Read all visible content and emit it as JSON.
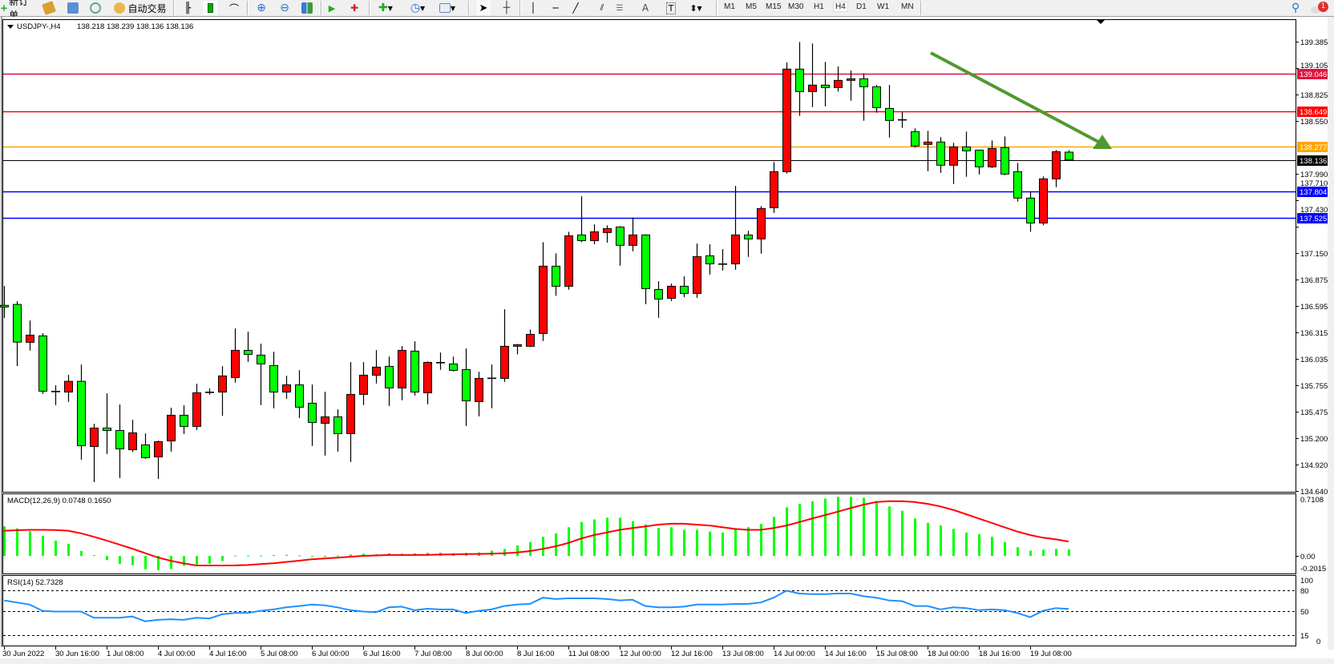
{
  "toolbar": {
    "new_order_label": "新订单",
    "auto_trading_label": "自动交易",
    "timeframes": [
      "M1",
      "M5",
      "M15",
      "M30",
      "H1",
      "H4",
      "D1",
      "W1",
      "MN"
    ],
    "active_timeframe": "H4",
    "notification_count": "1"
  },
  "chart": {
    "symbol_header": "USDJPY-,H4",
    "ohlc_header": "138.218 138.239 138.136 138.136",
    "bull_color": "#ff0000",
    "bear_color": "#00ff00",
    "price_ticks": [
      "139.385",
      "139.105",
      "138.825",
      "138.550",
      "137.990",
      "137.710",
      "137.430",
      "137.150",
      "136.875",
      "136.595",
      "136.315",
      "136.035",
      "135.755",
      "135.475",
      "135.200",
      "134.920",
      "134.640"
    ],
    "levels": [
      {
        "price": "139.046",
        "color": "#dc143c"
      },
      {
        "price": "138.649",
        "color": "#ff0000"
      },
      {
        "price": "138.277",
        "color": "#ffa500"
      },
      {
        "price": "138.136",
        "color": "#000000"
      },
      {
        "price": "137.804",
        "color": "#0000ff"
      },
      {
        "price": "137.525",
        "color": "#0000ff"
      }
    ],
    "trend_arrow_color": "#4f9a2f",
    "time_labels": [
      "30 Jun 2022",
      "30 Jun 16:00",
      "1 Jul 08:00",
      "4 Jul 00:00",
      "4 Jul 16:00",
      "5 Jul 08:00",
      "6 Jul 00:00",
      "6 Jul 16:00",
      "7 Jul 08:00",
      "8 Jul 00:00",
      "8 Jul 16:00",
      "11 Jul 08:00",
      "12 Jul 00:00",
      "12 Jul 16:00",
      "13 Jul 08:00",
      "14 Jul 00:00",
      "14 Jul 16:00",
      "15 Jul 08:00",
      "18 Jul 00:00",
      "18 Jul 16:00",
      "19 Jul 08:00"
    ]
  },
  "chart_data": {
    "type": "candlestick",
    "ylim": [
      134.64,
      139.385
    ],
    "ohlc": [
      [
        136.6,
        136.805,
        136.466,
        136.593
      ],
      [
        136.61,
        136.644,
        135.959,
        136.212
      ],
      [
        136.21,
        136.441,
        136.122,
        136.286
      ],
      [
        136.278,
        136.306,
        135.665,
        135.694
      ],
      [
        135.69,
        135.756,
        135.547,
        135.69
      ],
      [
        135.685,
        135.866,
        135.581,
        135.798
      ],
      [
        135.798,
        135.976,
        134.971,
        135.119
      ],
      [
        135.11,
        135.35,
        134.734,
        135.305
      ],
      [
        135.305,
        135.671,
        135.031,
        135.279
      ],
      [
        135.279,
        135.553,
        134.777,
        135.085
      ],
      [
        135.076,
        135.392,
        135.051,
        135.254
      ],
      [
        135.127,
        135.248,
        134.98,
        134.992
      ],
      [
        135.0,
        135.172,
        134.768,
        135.161
      ],
      [
        135.169,
        135.519,
        135.056,
        135.44
      ],
      [
        135.44,
        135.544,
        135.242,
        135.322
      ],
      [
        135.322,
        135.773,
        135.284,
        135.677
      ],
      [
        135.682,
        135.722,
        135.657,
        135.682
      ],
      [
        135.685,
        135.958,
        135.434,
        135.855
      ],
      [
        135.838,
        136.356,
        135.784,
        136.125
      ],
      [
        136.125,
        136.322,
        136.003,
        136.083
      ],
      [
        136.075,
        136.196,
        135.547,
        135.982
      ],
      [
        135.965,
        136.111,
        135.513,
        135.685
      ],
      [
        135.685,
        135.857,
        135.614,
        135.761
      ],
      [
        135.761,
        135.916,
        135.411,
        135.525
      ],
      [
        135.567,
        135.764,
        135.115,
        135.364
      ],
      [
        135.355,
        135.688,
        135.014,
        135.423
      ],
      [
        135.423,
        135.502,
        135.056,
        135.246
      ],
      [
        135.246,
        136.001,
        134.946,
        135.66
      ],
      [
        135.66,
        136.001,
        135.547,
        135.863
      ],
      [
        135.863,
        136.128,
        135.775,
        135.948
      ],
      [
        135.956,
        136.06,
        135.538,
        135.728
      ],
      [
        135.728,
        136.17,
        135.598,
        136.125
      ],
      [
        136.117,
        136.221,
        135.648,
        135.685
      ],
      [
        135.677,
        136.009,
        135.555,
        135.998
      ],
      [
        135.995,
        136.102,
        135.919,
        135.995
      ],
      [
        135.982,
        136.06,
        135.902,
        135.914
      ],
      [
        135.922,
        136.145,
        135.327,
        135.592
      ],
      [
        135.584,
        135.899,
        135.428,
        135.829
      ],
      [
        135.83,
        135.976,
        135.513,
        135.83
      ],
      [
        135.829,
        136.559,
        135.792,
        136.168
      ],
      [
        136.168,
        136.193,
        136.083,
        136.185
      ],
      [
        136.168,
        136.345,
        136.16,
        136.294
      ],
      [
        136.303,
        137.267,
        136.224,
        137.014
      ],
      [
        137.014,
        137.149,
        136.701,
        136.802
      ],
      [
        136.802,
        137.377,
        136.765,
        137.335
      ],
      [
        137.344,
        137.752,
        137.267,
        137.284
      ],
      [
        137.284,
        137.456,
        137.245,
        137.377
      ],
      [
        137.369,
        137.445,
        137.262,
        137.411
      ],
      [
        137.428,
        137.437,
        137.019,
        137.234
      ],
      [
        137.234,
        137.526,
        137.171,
        137.344
      ],
      [
        137.344,
        137.35,
        136.613,
        136.777
      ],
      [
        136.768,
        136.855,
        136.469,
        136.667
      ],
      [
        136.675,
        136.83,
        136.647,
        136.802
      ],
      [
        136.802,
        136.906,
        136.686,
        136.726
      ],
      [
        136.726,
        137.253,
        136.68,
        137.115
      ],
      [
        137.124,
        137.245,
        136.926,
        137.039
      ],
      [
        137.036,
        137.194,
        136.968,
        137.036
      ],
      [
        137.039,
        137.862,
        136.976,
        137.344
      ],
      [
        137.344,
        137.389,
        137.112,
        137.302
      ],
      [
        137.302,
        137.648,
        137.146,
        137.623
      ],
      [
        137.631,
        138.113,
        137.577,
        138.012
      ],
      [
        138.012,
        139.165,
        137.992,
        139.095
      ],
      [
        139.095,
        139.382,
        138.601,
        138.858
      ],
      [
        138.858,
        139.365,
        138.694,
        138.926
      ],
      [
        138.926,
        139.171,
        138.702,
        138.9
      ],
      [
        138.9,
        139.123,
        138.858,
        138.976
      ],
      [
        138.976,
        139.08,
        138.762,
        138.993
      ],
      [
        138.993,
        139.049,
        138.55,
        138.909
      ],
      [
        138.909,
        138.928,
        138.635,
        138.689
      ],
      [
        138.68,
        138.928,
        138.372,
        138.553
      ],
      [
        138.559,
        138.641,
        138.474,
        138.559
      ],
      [
        138.435,
        138.469,
        138.266,
        138.283
      ],
      [
        138.3,
        138.443,
        138.017,
        138.325
      ],
      [
        138.325,
        138.376,
        138.0,
        138.08
      ],
      [
        138.08,
        138.317,
        137.882,
        138.274
      ],
      [
        138.274,
        138.435,
        137.958,
        138.232
      ],
      [
        138.24,
        138.24,
        137.983,
        138.063
      ],
      [
        138.063,
        138.342,
        138.051,
        138.257
      ],
      [
        138.266,
        138.384,
        137.975,
        137.987
      ],
      [
        138.012,
        138.105,
        137.696,
        137.733
      ],
      [
        137.733,
        137.801,
        137.377,
        137.47
      ],
      [
        137.47,
        137.961,
        137.445,
        137.936
      ],
      [
        137.936,
        138.24,
        137.848,
        138.223
      ],
      [
        138.218,
        138.239,
        138.136,
        138.136
      ]
    ],
    "macd": {
      "label": "MACD(12,26,9) 0.0748 0.1650",
      "ylim": [
        -0.2015,
        0.7108
      ],
      "ticks": [
        "0.7108",
        "0.00",
        "-0.2015"
      ],
      "histogram_color": "#00ff00",
      "signal_color": "#ff0000",
      "histogram": [
        0.34,
        0.315,
        0.284,
        0.231,
        0.176,
        0.139,
        0.056,
        0.009,
        -0.049,
        -0.093,
        -0.108,
        -0.154,
        -0.164,
        -0.151,
        -0.114,
        -0.099,
        -0.09,
        -0.059,
        0.005,
        0.003,
        0.003,
        0.01,
        0.012,
        0.005,
        -0.005,
        -0.01,
        0.005,
        0.015,
        0.025,
        0.02,
        0.03,
        0.025,
        0.03,
        0.035,
        0.035,
        0.03,
        0.035,
        0.04,
        0.06,
        0.08,
        0.12,
        0.16,
        0.22,
        0.26,
        0.33,
        0.39,
        0.42,
        0.44,
        0.44,
        0.4,
        0.36,
        0.32,
        0.33,
        0.3,
        0.3,
        0.28,
        0.27,
        0.31,
        0.33,
        0.37,
        0.45,
        0.56,
        0.6,
        0.63,
        0.66,
        0.68,
        0.68,
        0.67,
        0.63,
        0.57,
        0.52,
        0.43,
        0.38,
        0.35,
        0.31,
        0.27,
        0.25,
        0.22,
        0.16,
        0.1,
        0.06,
        0.07,
        0.08,
        0.0748
      ],
      "signal": [
        0.29,
        0.295,
        0.3,
        0.3,
        0.298,
        0.29,
        0.26,
        0.22,
        0.176,
        0.13,
        0.083,
        0.031,
        -0.019,
        -0.056,
        -0.086,
        -0.111,
        -0.111,
        -0.111,
        -0.11,
        -0.105,
        -0.095,
        -0.085,
        -0.07,
        -0.055,
        -0.04,
        -0.03,
        -0.02,
        -0.01,
        0.0,
        0.005,
        0.01,
        0.01,
        0.01,
        0.012,
        0.015,
        0.018,
        0.02,
        0.022,
        0.025,
        0.03,
        0.04,
        0.055,
        0.08,
        0.11,
        0.15,
        0.2,
        0.24,
        0.27,
        0.3,
        0.32,
        0.34,
        0.36,
        0.37,
        0.37,
        0.36,
        0.35,
        0.33,
        0.31,
        0.3,
        0.3,
        0.32,
        0.35,
        0.39,
        0.43,
        0.47,
        0.51,
        0.55,
        0.59,
        0.62,
        0.63,
        0.63,
        0.62,
        0.6,
        0.57,
        0.53,
        0.48,
        0.43,
        0.38,
        0.33,
        0.28,
        0.24,
        0.21,
        0.19,
        0.165
      ]
    },
    "rsi": {
      "label": "RSI(14) 52.7328",
      "ylim": [
        0,
        100
      ],
      "levels": [
        80,
        50,
        15
      ],
      "ticks": [
        "100",
        "80",
        "50",
        "15",
        "0"
      ],
      "color": "#1e90ff",
      "values": [
        65,
        62,
        59,
        50,
        49,
        49,
        49,
        40,
        40,
        40,
        42,
        35,
        37,
        38,
        37,
        40,
        39,
        45,
        47,
        47,
        50,
        52,
        55,
        57,
        59,
        58,
        55,
        51,
        49,
        48,
        55,
        56,
        51,
        53,
        52,
        52,
        47,
        50,
        52,
        57,
        59,
        60,
        69,
        67,
        68,
        68,
        68,
        67,
        65,
        66,
        57,
        55,
        55,
        56,
        59,
        59,
        59,
        60,
        60,
        62,
        69,
        79,
        75,
        74,
        74,
        75,
        75,
        71,
        69,
        65,
        64,
        57,
        57,
        52,
        55,
        54,
        51,
        52,
        51,
        47,
        41,
        50,
        54,
        52.7328
      ]
    }
  }
}
